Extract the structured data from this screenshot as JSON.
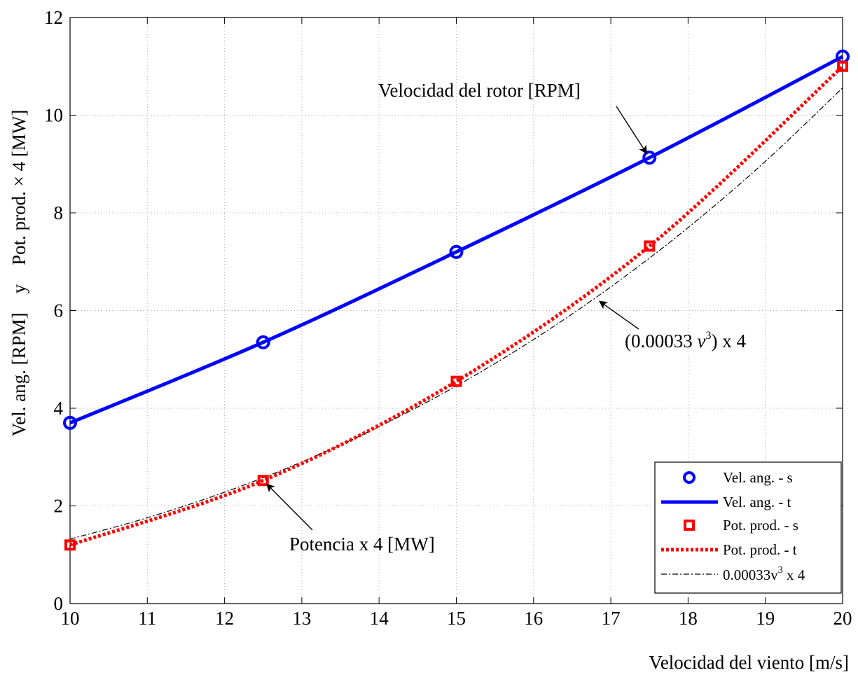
{
  "chart_data": {
    "type": "line",
    "title": "",
    "xlabel": "Velocidad del viento [m/s]",
    "ylabel": "Vel. ang. [RPM]    y    Pot. prod. × 4 [MW]",
    "xlim": [
      10,
      20
    ],
    "ylim": [
      0,
      12
    ],
    "xticks": [
      "10",
      "11",
      "12",
      "13",
      "14",
      "15",
      "16",
      "17",
      "18",
      "19",
      "20"
    ],
    "yticks": [
      "0",
      "2",
      "4",
      "6",
      "8",
      "10",
      "12"
    ],
    "grid": true,
    "legend_position": "bottom-right",
    "series": [
      {
        "name": "Vel. ang. - s",
        "style": "markers-circle",
        "color": "#0000ff",
        "x": [
          10,
          12.5,
          15,
          17.5,
          20
        ],
        "y": [
          3.7,
          5.35,
          7.2,
          9.13,
          11.2
        ]
      },
      {
        "name": "Vel. ang. - t",
        "style": "solid-line",
        "color": "#0000ff",
        "x": [
          10,
          12.5,
          15,
          17.5,
          20
        ],
        "y": [
          3.7,
          5.35,
          7.2,
          9.13,
          11.2
        ]
      },
      {
        "name": "Pot. prod. - s",
        "style": "markers-square",
        "color": "#ff0000",
        "x": [
          10,
          12.5,
          15,
          17.5,
          20
        ],
        "y": [
          1.2,
          2.52,
          4.55,
          7.32,
          11.0
        ]
      },
      {
        "name": "Pot. prod. - t",
        "style": "dotted-line",
        "color": "#ff0000",
        "x": [
          10,
          12.5,
          15,
          17.5,
          20
        ],
        "y": [
          1.2,
          2.52,
          4.55,
          7.32,
          11.0
        ]
      },
      {
        "name": "0.00033v³ x 4",
        "style": "dash-dot-line",
        "color": "#000000",
        "formula": "y = 0.00033 * x^3 * 4",
        "x": [
          10,
          11,
          12,
          13,
          14,
          15,
          16,
          17,
          18,
          19,
          20
        ],
        "y": [
          1.32,
          1.757,
          2.281,
          2.9,
          3.622,
          4.455,
          5.407,
          6.485,
          7.698,
          9.054,
          10.56
        ]
      }
    ],
    "annotations": [
      {
        "text": "Velocidad del rotor [RPM]",
        "arrow_to": {
          "x": 17.5,
          "y": 9.13
        }
      },
      {
        "text_before": "(0.00033 ",
        "text_var": "v",
        "text_sup": "3",
        "text_after": ") x 4",
        "arrow_to": {
          "x": 16.8,
          "y": 6.25
        }
      },
      {
        "text": "Potencia x 4 [MW]",
        "arrow_to": {
          "x": 12.5,
          "y": 2.52
        }
      }
    ]
  },
  "legend": {
    "items": [
      {
        "label": "Vel. ang. - s"
      },
      {
        "label": "Vel. ang. - t"
      },
      {
        "label": "Pot. prod. - s"
      },
      {
        "label": "Pot. prod. - t"
      },
      {
        "label_base": "0.00033v",
        "label_sup": "3",
        "label_after": " x 4"
      }
    ]
  }
}
